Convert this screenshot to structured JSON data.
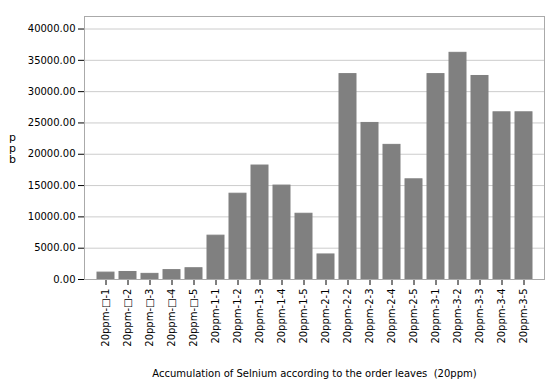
{
  "chart_data": {
    "type": "bar",
    "categories": [
      "20ppm-□-1",
      "20ppm-□-2",
      "20ppm-□-3",
      "20ppm-□-4",
      "20ppm-□-5",
      "20ppm-1-1",
      "20ppm-1-2",
      "20ppm-1-3",
      "20ppm-1-4",
      "20ppm-1-5",
      "20ppm-2-1",
      "20ppm-2-2",
      "20ppm-2-3",
      "20ppm-2-4",
      "20ppm-2-5",
      "20ppm-3-1",
      "20ppm-3-2",
      "20ppm-3-3",
      "20ppm-3-4",
      "20ppm-3-5"
    ],
    "values": [
      1100,
      1200,
      900,
      1500,
      1800,
      7000,
      13700,
      18200,
      15000,
      10500,
      4000,
      32800,
      25000,
      21500,
      16000,
      32800,
      36200,
      32500,
      26700,
      26700
    ],
    "color": "#808080",
    "xlabel": "Accumulation of Selnium according to the order leaves  (20ppm)",
    "ylabel": "p\np\nb",
    "ylim": [
      0,
      42000
    ],
    "yticks": [
      {
        "value": 0,
        "label": "0.00"
      },
      {
        "value": 5000,
        "label": "5000.00"
      },
      {
        "value": 10000,
        "label": "10000.00"
      },
      {
        "value": 15000,
        "label": "15000.00"
      },
      {
        "value": 20000,
        "label": "20000.00"
      },
      {
        "value": 25000,
        "label": "25000.00"
      },
      {
        "value": 30000,
        "label": "30000.00"
      },
      {
        "value": 35000,
        "label": "35000.00"
      },
      {
        "value": 40000,
        "label": "40000.00"
      }
    ],
    "grid": true
  }
}
